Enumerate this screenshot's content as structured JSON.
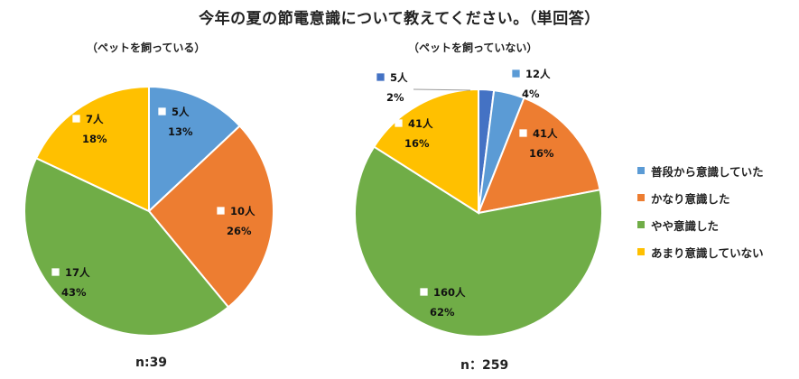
{
  "title": "今年の夏の節電意識について教えてください。（単回答）",
  "colors": {
    "blue": "#4472C4",
    "lightblue": "#5B9BD5",
    "orange": "#ED7D31",
    "green": "#70AD47",
    "yellow": "#FFC000"
  },
  "legend": [
    {
      "label": "普段から意識していた",
      "color": "#5B9BD5"
    },
    {
      "label": "かなり意識した",
      "color": "#ED7D31"
    },
    {
      "label": "やや意識した",
      "color": "#70AD47"
    },
    {
      "label": "あまり意識していない",
      "color": "#FFC000"
    }
  ],
  "chart_data": [
    {
      "type": "pie",
      "subtitle": "（ペットを飼っている）",
      "n_label": "n:39",
      "slices": [
        {
          "category": "普段から意識していた",
          "count_label": "5人",
          "value": 13,
          "pct_label": "13%",
          "color": "#5B9BD5"
        },
        {
          "category": "かなり意識した",
          "count_label": "10人",
          "value": 26,
          "pct_label": "26%",
          "color": "#ED7D31"
        },
        {
          "category": "やや意識した",
          "count_label": "17人",
          "value": 43,
          "pct_label": "43%",
          "color": "#70AD47"
        },
        {
          "category": "あまり意識していない",
          "count_label": "7人",
          "value": 18,
          "pct_label": "18%",
          "color": "#FFC000"
        }
      ]
    },
    {
      "type": "pie",
      "subtitle": "（ペットを飼っていない）",
      "n_label": "n：259",
      "slices": [
        {
          "category": "",
          "count_label": "5人",
          "value": 2,
          "pct_label": "2%",
          "color": "#4472C4"
        },
        {
          "category": "普段から意識していた",
          "count_label": "12人",
          "value": 4,
          "pct_label": "4%",
          "color": "#5B9BD5"
        },
        {
          "category": "かなり意識した",
          "count_label": "41人",
          "value": 16,
          "pct_label": "16%",
          "color": "#ED7D31"
        },
        {
          "category": "やや意識した",
          "count_label": "160人",
          "value": 62,
          "pct_label": "62%",
          "color": "#70AD47"
        },
        {
          "category": "あまり意識していない",
          "count_label": "41人",
          "value": 16,
          "pct_label": "16%",
          "color": "#FFC000"
        }
      ]
    }
  ]
}
